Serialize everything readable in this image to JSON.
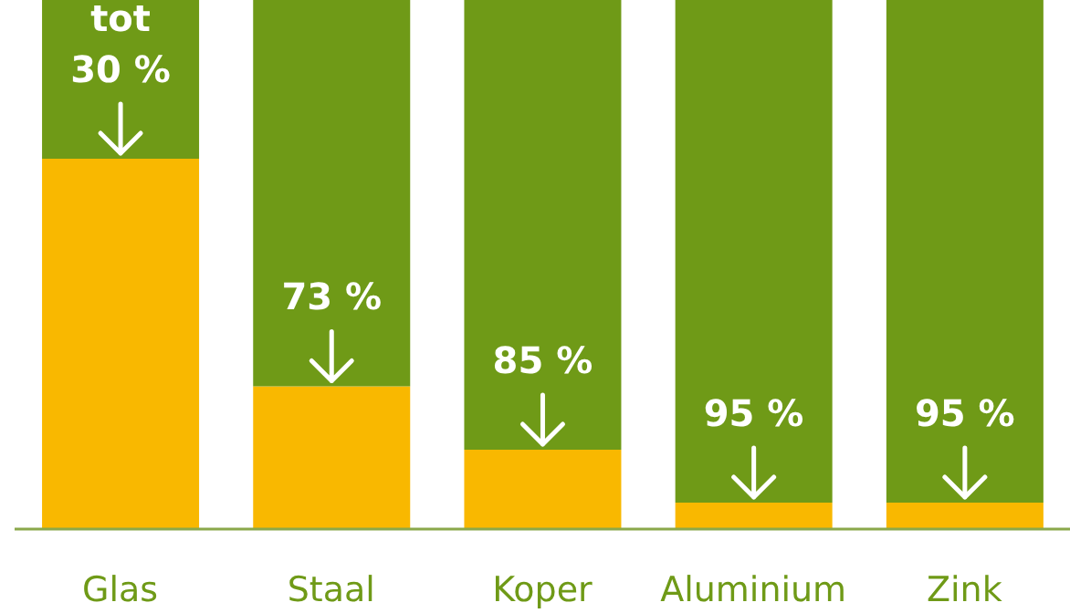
{
  "chart_data": {
    "type": "bar",
    "stacked": true,
    "ylim": [
      0,
      100
    ],
    "tick_labels": "x",
    "categories": [
      "Glas",
      "Staal",
      "Koper",
      "Aluminium",
      "Zink"
    ],
    "series": [
      {
        "color": "#f9b800",
        "values": [
          70,
          27,
          15,
          5,
          5
        ]
      },
      {
        "color": "#6f9a17",
        "values": [
          30,
          73,
          85,
          95,
          95
        ],
        "value_labels": [
          "tot 30 %",
          "73 %",
          "85 %",
          "95 %",
          "95 %"
        ]
      }
    ]
  }
}
